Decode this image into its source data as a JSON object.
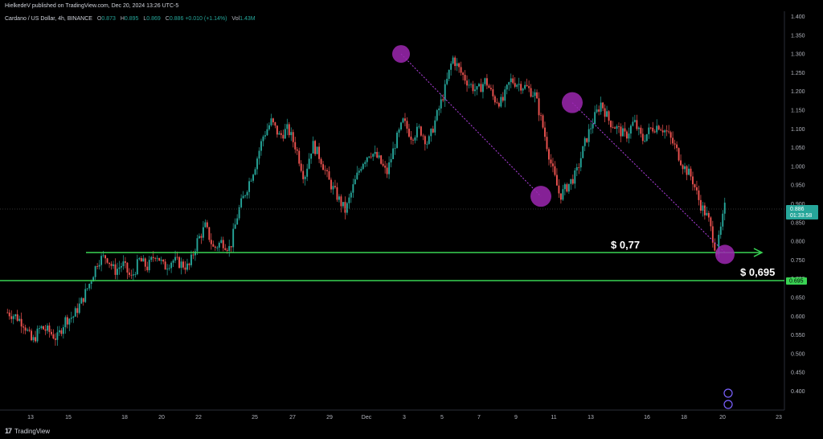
{
  "header": {
    "publisher": "HielkedeV published on TradingView.com, Dec 20, 2024 13:26 UTC-5"
  },
  "symbol_bar": {
    "name": "Cardano / US Dollar, 4h, BINANCE",
    "o_label": "O",
    "o_value": "0.873",
    "h_label": "H",
    "h_value": "0.895",
    "l_label": "L",
    "l_value": "0.869",
    "c_label": "C",
    "c_value": "0.886",
    "change": "+0.010 (+1.14%)",
    "vol_label": "Vol",
    "vol_value": "1.43M"
  },
  "footer": {
    "logo": "17",
    "brand": "TradingView"
  },
  "colors": {
    "up": "#26a69a",
    "down": "#ef5350",
    "support": "#39d353",
    "marker": "#9c27b0",
    "trend": "#b040e0",
    "price_badge": "#26a69a",
    "level_badge": "#39d353"
  },
  "chart_data": {
    "type": "candlestick",
    "title": "Cardano / US Dollar, 4h, BINANCE",
    "x_ticks": [
      "13",
      "15",
      "18",
      "20",
      "22",
      "25",
      "27",
      "29",
      "Dec",
      "3",
      "5",
      "7",
      "9",
      "11",
      "13",
      "16",
      "18",
      "20",
      "23"
    ],
    "y_ticks": [
      "1.400",
      "1.350",
      "1.300",
      "1.250",
      "1.200",
      "1.150",
      "1.100",
      "1.050",
      "1.000",
      "0.950",
      "0.900",
      "0.850",
      "0.800",
      "0.750",
      "0.700",
      "0.650",
      "0.600",
      "0.550",
      "0.500",
      "0.450",
      "0.400"
    ],
    "ylim": [
      0.36,
      1.41
    ],
    "price_path": [
      [
        0.61,
        0.6,
        0.58,
        0.53,
        0.57,
        0.56,
        0.54,
        0.59,
        0.6,
        0.64
      ],
      [
        0.64,
        0.69,
        0.75,
        0.76,
        0.72,
        0.74,
        0.7,
        0.75,
        0.73,
        0.77
      ],
      [
        0.77,
        0.73,
        0.75,
        0.74,
        0.73,
        0.8,
        0.84,
        0.78,
        0.8,
        0.78
      ],
      [
        0.78,
        0.88,
        0.94,
        1.0,
        1.08,
        1.12,
        1.08,
        1.1,
        1.05,
        0.97
      ],
      [
        0.97,
        1.06,
        1.02,
        0.96,
        0.92,
        0.88,
        0.95,
        1.01,
        1.04,
        1.02
      ],
      [
        1.02,
        0.98,
        1.06,
        1.12,
        1.08,
        1.1,
        1.06,
        1.13,
        1.2,
        1.29
      ],
      [
        1.29,
        1.25,
        1.22,
        1.2,
        1.23,
        1.18,
        1.17,
        1.23,
        1.22,
        1.21
      ],
      [
        1.21,
        1.19,
        1.1,
        1.0,
        0.92,
        0.95,
        0.98,
        1.06,
        1.12,
        1.17
      ],
      [
        1.17,
        1.12,
        1.1,
        1.08,
        1.12,
        1.07,
        1.1,
        1.11,
        1.09,
        1.05
      ],
      [
        1.05,
        1.0,
        0.97,
        0.9,
        0.86,
        0.77,
        0.89
      ]
    ],
    "current_price": {
      "value": 0.886,
      "label": "0.886",
      "countdown": "01:33:58"
    },
    "support_levels": [
      {
        "value": 0.77,
        "label": "$ 0,77"
      },
      {
        "value": 0.695,
        "label": "$ 0,695",
        "axis_label": "0.695"
      }
    ],
    "markers": [
      {
        "x_tick": "3",
        "value": 1.3
      },
      {
        "x_tick": "11",
        "value": 0.92
      },
      {
        "x_tick": "11",
        "value": 1.17
      },
      {
        "x_tick": "20",
        "value": 0.765
      }
    ],
    "trendlines": [
      {
        "from": [
          1.3
        ],
        "to": [
          0.92
        ]
      },
      {
        "from": [
          1.17
        ],
        "to": [
          0.77
        ]
      }
    ],
    "grid": false
  }
}
